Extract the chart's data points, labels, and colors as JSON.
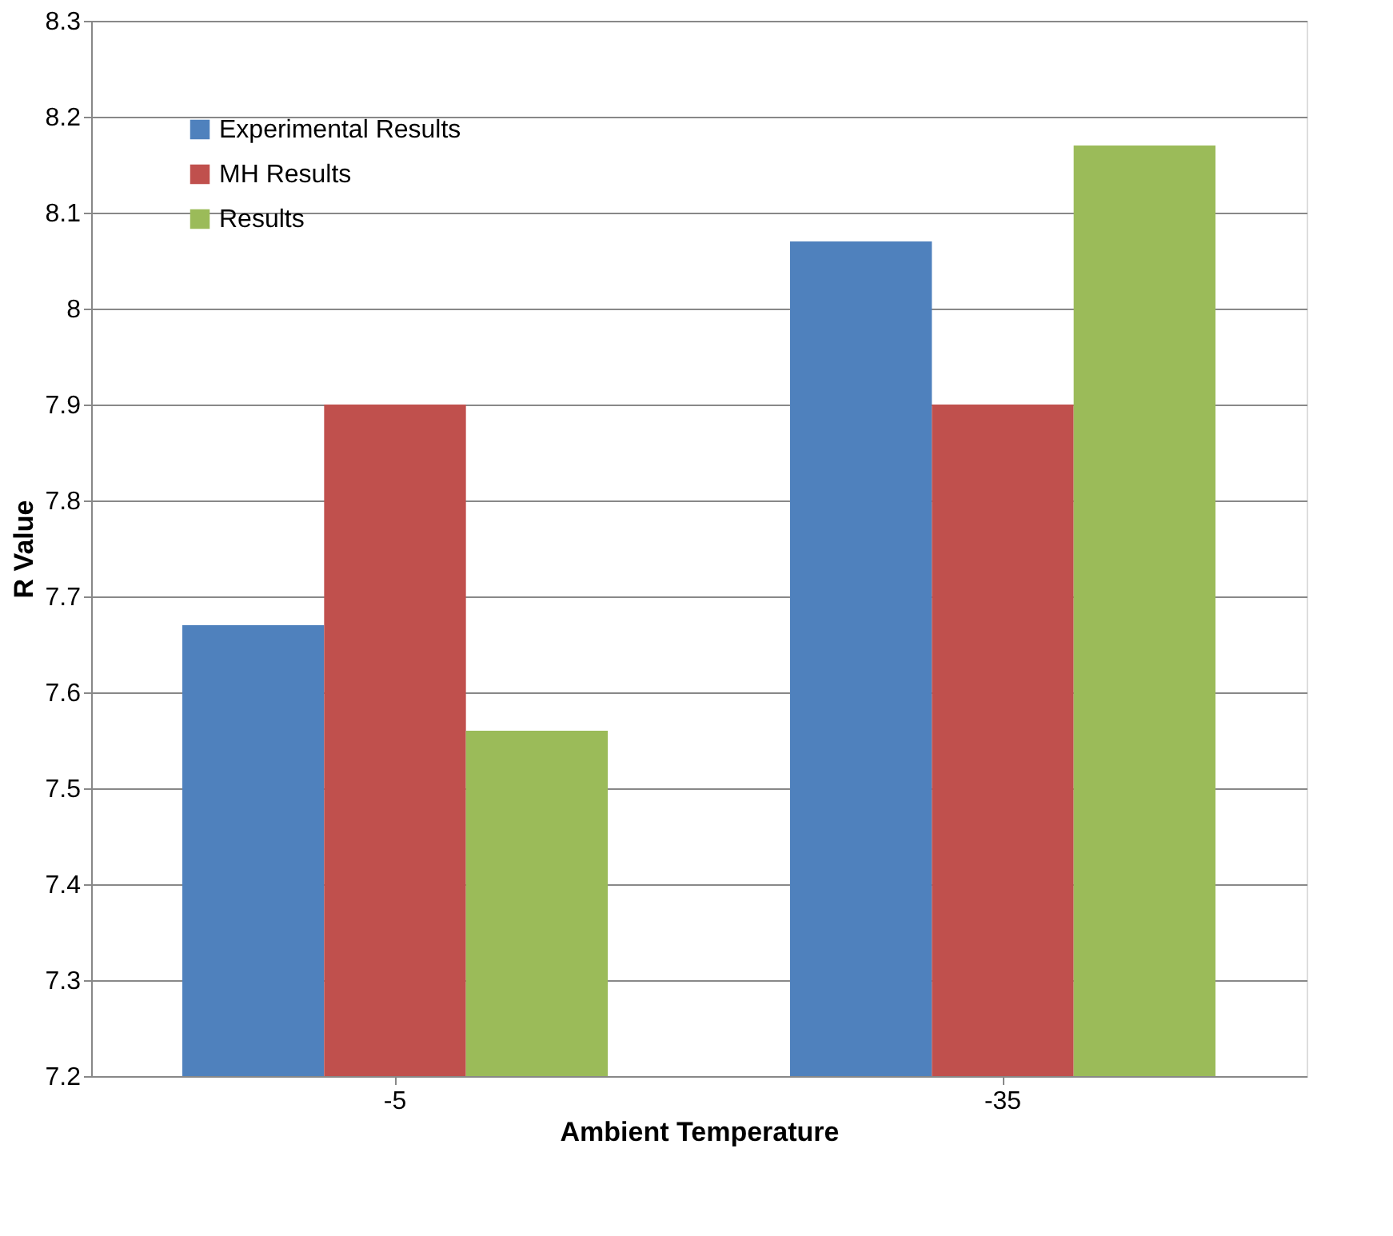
{
  "chart_data": {
    "type": "bar",
    "xlabel": "Ambient Temperature",
    "ylabel": "R Value",
    "categories": [
      "-5",
      "-35"
    ],
    "series": [
      {
        "name": "Experimental Results",
        "color": "#4f81bd",
        "values": [
          7.67,
          8.07
        ]
      },
      {
        "name": "MH Results",
        "color": "#c0504d",
        "values": [
          7.9,
          7.9
        ]
      },
      {
        "name": "Results",
        "color": "#9bbb59",
        "values": [
          7.56,
          8.17
        ]
      }
    ],
    "ylim": [
      7.2,
      8.3
    ],
    "yticks": [
      7.2,
      7.3,
      7.4,
      7.5,
      7.6,
      7.7,
      7.8,
      7.9,
      8,
      8.1,
      8.2,
      8.3
    ],
    "grid": "y",
    "legend": "top left"
  }
}
